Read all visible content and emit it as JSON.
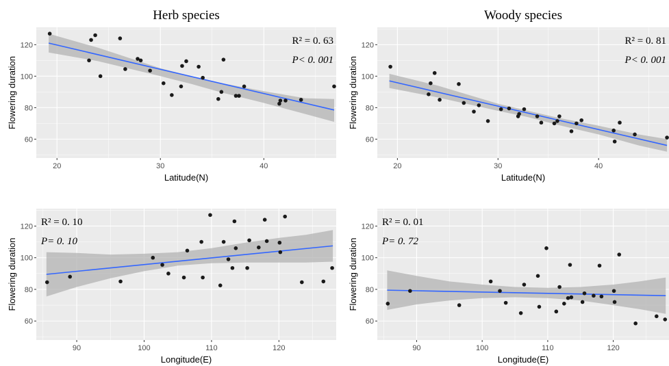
{
  "colors": {
    "panel_bg": "#ebebeb",
    "grid_major": "#ffffff",
    "fit_line": "#3366ff",
    "ci_band": "#b3b3b3",
    "point": "#1a1a1a"
  },
  "chart_data": [
    {
      "type": "scatter",
      "title": "Herb species",
      "xlabel": "Latitude(N)",
      "ylabel": "Flowering duration",
      "xlim": [
        18,
        47
      ],
      "ylim": [
        48,
        131
      ],
      "xticks": [
        20,
        30,
        40
      ],
      "yticks": [
        60,
        80,
        100,
        120
      ],
      "stats": {
        "r2": "R² = 0. 63",
        "p": "P< 0. 001"
      },
      "stats_position": "top-right",
      "grid": true,
      "fit": {
        "x": [
          19.2,
          46.8
        ],
        "y": [
          121,
          78.5
        ]
      },
      "ci": {
        "x": [
          19.2,
          24,
          30,
          33,
          36,
          40,
          44,
          46.8
        ],
        "lower": [
          115,
          109.5,
          100,
          95,
          89.5,
          83,
          76,
          71
        ],
        "upper": [
          127,
          118,
          105,
          100,
          95.5,
          90.5,
          86,
          85.5
        ]
      },
      "points": [
        {
          "x": 19.3,
          "y": 127
        },
        {
          "x": 23.1,
          "y": 110
        },
        {
          "x": 23.3,
          "y": 123
        },
        {
          "x": 23.7,
          "y": 126
        },
        {
          "x": 24.2,
          "y": 100
        },
        {
          "x": 26.1,
          "y": 124
        },
        {
          "x": 26.6,
          "y": 104.5
        },
        {
          "x": 27.8,
          "y": 111
        },
        {
          "x": 28.1,
          "y": 110
        },
        {
          "x": 29.0,
          "y": 103.5
        },
        {
          "x": 30.3,
          "y": 95.5
        },
        {
          "x": 31.1,
          "y": 88
        },
        {
          "x": 32.0,
          "y": 93.5
        },
        {
          "x": 32.1,
          "y": 106.5
        },
        {
          "x": 32.5,
          "y": 109.5
        },
        {
          "x": 33.7,
          "y": 106
        },
        {
          "x": 34.1,
          "y": 99
        },
        {
          "x": 35.6,
          "y": 85.5
        },
        {
          "x": 35.9,
          "y": 90
        },
        {
          "x": 36.1,
          "y": 110.5
        },
        {
          "x": 37.3,
          "y": 87.5
        },
        {
          "x": 37.6,
          "y": 87.5
        },
        {
          "x": 38.1,
          "y": 93.5
        },
        {
          "x": 41.5,
          "y": 82.5
        },
        {
          "x": 41.6,
          "y": 84.5
        },
        {
          "x": 42.1,
          "y": 84.5
        },
        {
          "x": 43.6,
          "y": 85
        },
        {
          "x": 46.8,
          "y": 93.5
        }
      ]
    },
    {
      "type": "scatter",
      "title": "Woody species",
      "xlabel": "Latitude(N)",
      "ylabel": "Flowering duration",
      "xlim": [
        18,
        47
      ],
      "ylim": [
        48,
        131
      ],
      "xticks": [
        20,
        30,
        40
      ],
      "yticks": [
        60,
        80,
        100,
        120
      ],
      "stats": {
        "r2": "R² = 0. 81",
        "p": "P< 0. 001"
      },
      "stats_position": "top-right",
      "grid": true,
      "fit": {
        "x": [
          19.2,
          46.8
        ],
        "y": [
          97,
          56
        ]
      },
      "ci": {
        "x": [
          19.2,
          24,
          30,
          33,
          36,
          40,
          44,
          46.8
        ],
        "lower": [
          92.5,
          86.5,
          78,
          74,
          69,
          63,
          56,
          52
        ],
        "upper": [
          101.5,
          94,
          82.5,
          78,
          73.5,
          68.5,
          63,
          60
        ]
      },
      "points": [
        {
          "x": 19.3,
          "y": 106
        },
        {
          "x": 23.1,
          "y": 88.5
        },
        {
          "x": 23.3,
          "y": 95.5
        },
        {
          "x": 23.7,
          "y": 102
        },
        {
          "x": 24.2,
          "y": 85
        },
        {
          "x": 26.1,
          "y": 95
        },
        {
          "x": 26.6,
          "y": 83
        },
        {
          "x": 27.6,
          "y": 77.5
        },
        {
          "x": 28.1,
          "y": 81.5
        },
        {
          "x": 29.0,
          "y": 71.5
        },
        {
          "x": 30.3,
          "y": 79
        },
        {
          "x": 31.1,
          "y": 79.5
        },
        {
          "x": 32.0,
          "y": 74.5
        },
        {
          "x": 32.1,
          "y": 76
        },
        {
          "x": 32.6,
          "y": 79
        },
        {
          "x": 33.9,
          "y": 74.5
        },
        {
          "x": 34.3,
          "y": 70.5
        },
        {
          "x": 35.6,
          "y": 70
        },
        {
          "x": 35.9,
          "y": 71.5
        },
        {
          "x": 36.1,
          "y": 74.5
        },
        {
          "x": 37.3,
          "y": 65
        },
        {
          "x": 37.8,
          "y": 70
        },
        {
          "x": 38.3,
          "y": 72
        },
        {
          "x": 41.5,
          "y": 65.5
        },
        {
          "x": 41.6,
          "y": 58.5
        },
        {
          "x": 42.1,
          "y": 70.5
        },
        {
          "x": 43.6,
          "y": 63
        },
        {
          "x": 46.8,
          "y": 61
        }
      ]
    },
    {
      "type": "scatter",
      "title": "",
      "xlabel": "Longitude(E)",
      "ylabel": "Flowering duration",
      "xlim": [
        84,
        128.5
      ],
      "ylim": [
        48,
        131
      ],
      "xticks": [
        90,
        100,
        110,
        120
      ],
      "yticks": [
        60,
        80,
        100,
        120
      ],
      "stats": {
        "r2": "R² = 0. 10",
        "p": "P= 0. 10"
      },
      "stats_position": "top-left",
      "grid": true,
      "fit": {
        "x": [
          85.5,
          128
        ],
        "y": [
          89.5,
          107.5
        ]
      },
      "ci": {
        "x": [
          85.5,
          90,
          95,
          100,
          105,
          110,
          115,
          120,
          124,
          128
        ],
        "lower": [
          75.5,
          81.5,
          87,
          91.5,
          95,
          96.5,
          97,
          97,
          97,
          97.5
        ],
        "upper": [
          103.5,
          103,
          102,
          102.5,
          103.5,
          106,
          109.5,
          112.5,
          114.5,
          117.5
        ]
      },
      "points": [
        {
          "x": 85.6,
          "y": 84.5
        },
        {
          "x": 89.0,
          "y": 88
        },
        {
          "x": 96.5,
          "y": 85
        },
        {
          "x": 101.3,
          "y": 100
        },
        {
          "x": 102.7,
          "y": 95.5
        },
        {
          "x": 103.6,
          "y": 90
        },
        {
          "x": 105.9,
          "y": 87.5
        },
        {
          "x": 106.4,
          "y": 104.5
        },
        {
          "x": 108.5,
          "y": 110
        },
        {
          "x": 108.7,
          "y": 87.5
        },
        {
          "x": 109.8,
          "y": 127
        },
        {
          "x": 111.3,
          "y": 82.5
        },
        {
          "x": 111.8,
          "y": 110
        },
        {
          "x": 112.5,
          "y": 99
        },
        {
          "x": 113.1,
          "y": 93.5
        },
        {
          "x": 113.4,
          "y": 123
        },
        {
          "x": 113.6,
          "y": 106
        },
        {
          "x": 115.3,
          "y": 93.5
        },
        {
          "x": 115.6,
          "y": 111
        },
        {
          "x": 117.0,
          "y": 106.5
        },
        {
          "x": 117.9,
          "y": 124
        },
        {
          "x": 118.2,
          "y": 110.5
        },
        {
          "x": 120.1,
          "y": 109.5
        },
        {
          "x": 120.2,
          "y": 103.5
        },
        {
          "x": 120.9,
          "y": 126
        },
        {
          "x": 123.4,
          "y": 84.5
        },
        {
          "x": 126.6,
          "y": 85
        },
        {
          "x": 127.9,
          "y": 93.5
        }
      ]
    },
    {
      "type": "scatter",
      "title": "",
      "xlabel": "Longitude(E)",
      "ylabel": "Flowering duration",
      "xlim": [
        84,
        128.5
      ],
      "ylim": [
        48,
        131
      ],
      "xticks": [
        90,
        100,
        110,
        120
      ],
      "yticks": [
        60,
        80,
        100,
        120
      ],
      "stats": {
        "r2": "R² = 0. 01",
        "p": "P= 0. 72"
      },
      "stats_position": "top-left",
      "grid": true,
      "fit": {
        "x": [
          85.5,
          128
        ],
        "y": [
          79.5,
          76
        ]
      },
      "ci": {
        "x": [
          85.5,
          90,
          95,
          100,
          105,
          110,
          115,
          120,
          124,
          128
        ],
        "lower": [
          67,
          70.5,
          73,
          74.5,
          75,
          74.5,
          73,
          70,
          67.5,
          64.5
        ],
        "upper": [
          92,
          88.5,
          85,
          83,
          81.5,
          81,
          81.5,
          83,
          85,
          87.5
        ]
      },
      "points": [
        {
          "x": 85.6,
          "y": 71
        },
        {
          "x": 89.0,
          "y": 79
        },
        {
          "x": 96.5,
          "y": 70
        },
        {
          "x": 101.3,
          "y": 85
        },
        {
          "x": 102.7,
          "y": 79
        },
        {
          "x": 103.6,
          "y": 71.5
        },
        {
          "x": 105.9,
          "y": 65
        },
        {
          "x": 106.4,
          "y": 83
        },
        {
          "x": 108.5,
          "y": 88.5
        },
        {
          "x": 108.7,
          "y": 69
        },
        {
          "x": 109.8,
          "y": 106
        },
        {
          "x": 111.3,
          "y": 66
        },
        {
          "x": 111.8,
          "y": 81.5
        },
        {
          "x": 112.5,
          "y": 71
        },
        {
          "x": 113.1,
          "y": 74.5
        },
        {
          "x": 113.4,
          "y": 95.5
        },
        {
          "x": 113.6,
          "y": 75
        },
        {
          "x": 115.3,
          "y": 72
        },
        {
          "x": 115.6,
          "y": 77.5
        },
        {
          "x": 117.0,
          "y": 76
        },
        {
          "x": 117.9,
          "y": 95
        },
        {
          "x": 118.2,
          "y": 75.5
        },
        {
          "x": 120.1,
          "y": 79
        },
        {
          "x": 120.2,
          "y": 72
        },
        {
          "x": 120.9,
          "y": 102
        },
        {
          "x": 123.4,
          "y": 58.5
        },
        {
          "x": 126.6,
          "y": 63
        },
        {
          "x": 127.9,
          "y": 61
        }
      ]
    }
  ]
}
